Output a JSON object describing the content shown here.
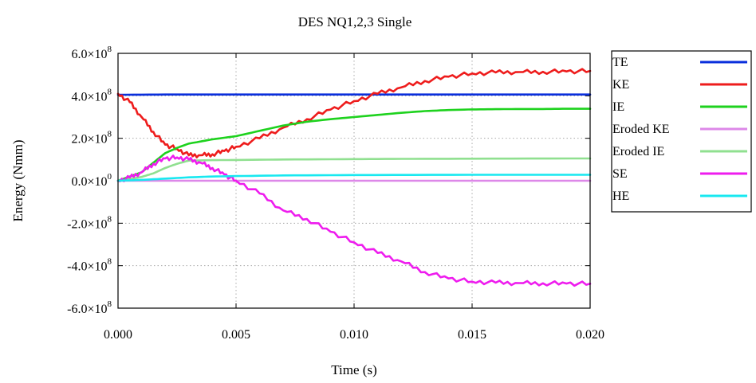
{
  "chart_data": {
    "type": "line",
    "title": "DES NQ1,2,3 Single",
    "xlabel": "Time (s)",
    "ylabel": "Energy (Nmm)",
    "xlim": [
      0,
      0.02
    ],
    "ylim": [
      -600000000,
      600000000
    ],
    "x_ticks": [
      0,
      0.005,
      0.01,
      0.015,
      0.02
    ],
    "x_tick_labels": [
      "0.000",
      "0.005",
      "0.010",
      "0.015",
      "0.020"
    ],
    "y_ticks": [
      600000000,
      400000000,
      200000000,
      0,
      -200000000,
      -400000000,
      -600000000
    ],
    "y_tick_mantissas": [
      "6.0",
      "4.0",
      "2.0",
      "0.0",
      "-2.0",
      "-4.0",
      "-6.0"
    ],
    "y_tick_exponents": [
      "8",
      "8",
      "8",
      "0",
      "8",
      "8",
      "8"
    ],
    "grid": true,
    "legend_position": "right",
    "series": [
      {
        "name": "TE",
        "color": "#0a2fdc",
        "x": [
          0,
          0.002,
          0.005,
          0.01,
          0.015,
          0.02
        ],
        "y": [
          405000000,
          406000000,
          406000000,
          406000000,
          406000000,
          406000000
        ]
      },
      {
        "name": "KE",
        "color": "#ee1c1c",
        "x": [
          0,
          0.0005,
          0.001,
          0.0015,
          0.002,
          0.0025,
          0.003,
          0.0035,
          0.004,
          0.0045,
          0.005,
          0.006,
          0.007,
          0.008,
          0.009,
          0.01,
          0.011,
          0.012,
          0.013,
          0.014,
          0.015,
          0.016,
          0.017,
          0.018,
          0.019,
          0.02
        ],
        "y": [
          410000000,
          370000000,
          300000000,
          230000000,
          170000000,
          150000000,
          120000000,
          120000000,
          125000000,
          140000000,
          160000000,
          200000000,
          250000000,
          290000000,
          335000000,
          375000000,
          410000000,
          440000000,
          470000000,
          490000000,
          505000000,
          510000000,
          512000000,
          513000000,
          515000000,
          517000000
        ]
      },
      {
        "name": "IE",
        "color": "#1ed21e",
        "x": [
          0,
          0.0005,
          0.001,
          0.0015,
          0.002,
          0.0025,
          0.003,
          0.0035,
          0.004,
          0.005,
          0.006,
          0.007,
          0.008,
          0.009,
          0.01,
          0.011,
          0.012,
          0.013,
          0.014,
          0.015,
          0.016,
          0.017,
          0.018,
          0.019,
          0.02
        ],
        "y": [
          0,
          20000000,
          40000000,
          85000000,
          130000000,
          155000000,
          175000000,
          185000000,
          195000000,
          210000000,
          235000000,
          260000000,
          278000000,
          290000000,
          300000000,
          310000000,
          320000000,
          328000000,
          333000000,
          336000000,
          337000000,
          338000000,
          338000000,
          339000000,
          339000000
        ]
      },
      {
        "name": "Eroded KE",
        "color": "#dd88e8",
        "x": [
          0,
          0.005,
          0.01,
          0.015,
          0.02
        ],
        "y": [
          0,
          0,
          0,
          0,
          0
        ]
      },
      {
        "name": "Eroded IE",
        "color": "#90e090",
        "x": [
          0,
          0.0005,
          0.001,
          0.0015,
          0.002,
          0.0025,
          0.003,
          0.004,
          0.005,
          0.007,
          0.01,
          0.012,
          0.015,
          0.02
        ],
        "y": [
          0,
          8000000,
          18000000,
          35000000,
          60000000,
          80000000,
          95000000,
          97000000,
          98000000,
          100000000,
          102000000,
          103000000,
          104000000,
          105000000
        ]
      },
      {
        "name": "SE",
        "color": "#ee1cee",
        "x": [
          0,
          0.0005,
          0.001,
          0.0015,
          0.002,
          0.0025,
          0.003,
          0.0035,
          0.004,
          0.0045,
          0.005,
          0.006,
          0.007,
          0.008,
          0.009,
          0.01,
          0.011,
          0.012,
          0.013,
          0.014,
          0.015,
          0.016,
          0.017,
          0.018,
          0.019,
          0.02
        ],
        "y": [
          0,
          15000000,
          40000000,
          80000000,
          105000000,
          110000000,
          100000000,
          85000000,
          60000000,
          30000000,
          0,
          -60000000,
          -140000000,
          -180000000,
          -240000000,
          -290000000,
          -340000000,
          -380000000,
          -430000000,
          -460000000,
          -475000000,
          -480000000,
          -482000000,
          -483000000,
          -484000000,
          -485000000
        ]
      },
      {
        "name": "HE",
        "color": "#18e8f0",
        "x": [
          0,
          0.001,
          0.002,
          0.003,
          0.004,
          0.005,
          0.007,
          0.01,
          0.015,
          0.02
        ],
        "y": [
          0,
          4000000,
          10000000,
          16000000,
          20000000,
          22000000,
          25000000,
          27000000,
          28000000,
          28000000
        ]
      }
    ]
  }
}
